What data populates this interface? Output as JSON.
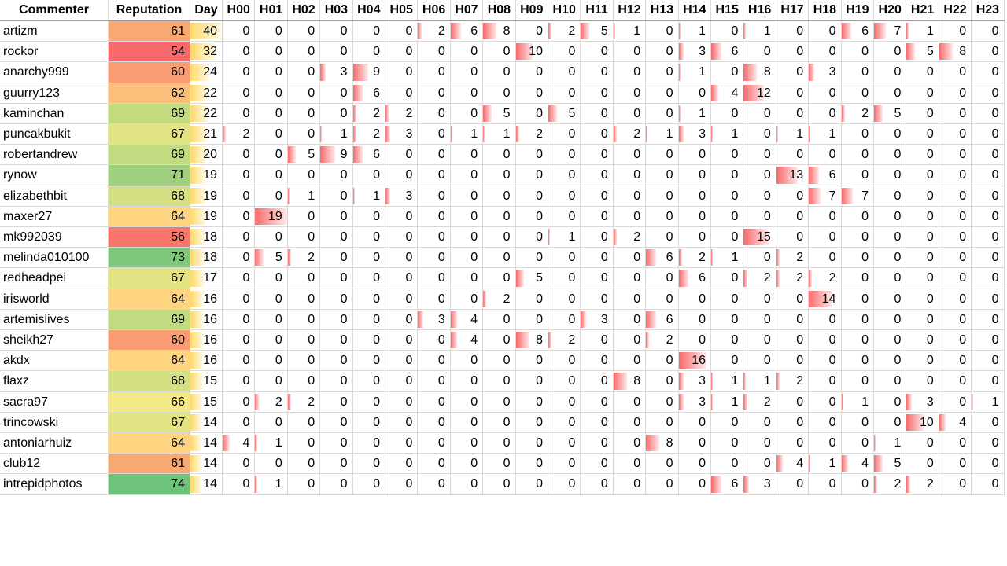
{
  "headers": [
    "Commenter",
    "Reputation",
    "Day",
    "H00",
    "H01",
    "H02",
    "H03",
    "H04",
    "H05",
    "H06",
    "H07",
    "H08",
    "H09",
    "H10",
    "H11",
    "H12",
    "H13",
    "H14",
    "H15",
    "H16",
    "H17",
    "H18",
    "H19",
    "H20",
    "H21",
    "H22",
    "H23"
  ],
  "rows": [
    {
      "name": "artizm",
      "rep": 61,
      "rep_color": "#f8a872",
      "day": 40,
      "hours": [
        0,
        0,
        0,
        0,
        0,
        0,
        2,
        6,
        8,
        0,
        2,
        5,
        1,
        0,
        1,
        0,
        1,
        0,
        0,
        6,
        7,
        1,
        0,
        0
      ]
    },
    {
      "name": "rockor",
      "rep": 54,
      "rep_color": "#f8696b",
      "day": 32,
      "hours": [
        0,
        0,
        0,
        0,
        0,
        0,
        0,
        0,
        0,
        10,
        0,
        0,
        0,
        0,
        3,
        6,
        0,
        0,
        0,
        0,
        0,
        5,
        8,
        0
      ]
    },
    {
      "name": "anarchy999",
      "rep": 60,
      "rep_color": "#f99c74",
      "day": 24,
      "hours": [
        0,
        0,
        0,
        3,
        9,
        0,
        0,
        0,
        0,
        0,
        0,
        0,
        0,
        0,
        1,
        0,
        8,
        0,
        3,
        0,
        0,
        0,
        0,
        0
      ]
    },
    {
      "name": "guurry123",
      "rep": 62,
      "rep_color": "#fbbf7b",
      "day": 22,
      "hours": [
        0,
        0,
        0,
        0,
        6,
        0,
        0,
        0,
        0,
        0,
        0,
        0,
        0,
        0,
        0,
        4,
        12,
        0,
        0,
        0,
        0,
        0,
        0,
        0
      ]
    },
    {
      "name": "kaminchan",
      "rep": 69,
      "rep_color": "#c2da80",
      "day": 22,
      "hours": [
        0,
        0,
        0,
        0,
        2,
        2,
        0,
        0,
        5,
        0,
        5,
        0,
        0,
        0,
        1,
        0,
        0,
        0,
        0,
        2,
        5,
        0,
        0,
        0
      ]
    },
    {
      "name": "puncakbukit",
      "rep": 67,
      "rep_color": "#e2e383",
      "day": 21,
      "hours": [
        2,
        0,
        0,
        1,
        2,
        3,
        0,
        1,
        1,
        2,
        0,
        0,
        2,
        1,
        3,
        1,
        0,
        1,
        1,
        0,
        0,
        0,
        0,
        0
      ]
    },
    {
      "name": "robertandrew",
      "rep": 69,
      "rep_color": "#c2da80",
      "day": 20,
      "hours": [
        0,
        0,
        5,
        9,
        6,
        0,
        0,
        0,
        0,
        0,
        0,
        0,
        0,
        0,
        0,
        0,
        0,
        0,
        0,
        0,
        0,
        0,
        0,
        0
      ]
    },
    {
      "name": "rynow",
      "rep": 71,
      "rep_color": "#9fd07d",
      "day": 19,
      "hours": [
        0,
        0,
        0,
        0,
        0,
        0,
        0,
        0,
        0,
        0,
        0,
        0,
        0,
        0,
        0,
        0,
        0,
        13,
        6,
        0,
        0,
        0,
        0,
        0
      ]
    },
    {
      "name": "elizabethbit",
      "rep": 68,
      "rep_color": "#d3df82",
      "day": 19,
      "hours": [
        0,
        0,
        1,
        0,
        1,
        3,
        0,
        0,
        0,
        0,
        0,
        0,
        0,
        0,
        0,
        0,
        0,
        0,
        7,
        7,
        0,
        0,
        0,
        0
      ]
    },
    {
      "name": "maxer27",
      "rep": 64,
      "rep_color": "#fed480",
      "day": 19,
      "hours": [
        0,
        19,
        0,
        0,
        0,
        0,
        0,
        0,
        0,
        0,
        0,
        0,
        0,
        0,
        0,
        0,
        0,
        0,
        0,
        0,
        0,
        0,
        0,
        0
      ]
    },
    {
      "name": "mk992039",
      "rep": 56,
      "rep_color": "#f9766d",
      "day": 18,
      "hours": [
        0,
        0,
        0,
        0,
        0,
        0,
        0,
        0,
        0,
        0,
        1,
        0,
        2,
        0,
        0,
        0,
        15,
        0,
        0,
        0,
        0,
        0,
        0,
        0
      ]
    },
    {
      "name": "melinda010100",
      "rep": 73,
      "rep_color": "#7fc77b",
      "day": 18,
      "hours": [
        0,
        5,
        2,
        0,
        0,
        0,
        0,
        0,
        0,
        0,
        0,
        0,
        0,
        6,
        2,
        1,
        0,
        2,
        0,
        0,
        0,
        0,
        0,
        0
      ]
    },
    {
      "name": "redheadpei",
      "rep": 67,
      "rep_color": "#e2e383",
      "day": 17,
      "hours": [
        0,
        0,
        0,
        0,
        0,
        0,
        0,
        0,
        0,
        5,
        0,
        0,
        0,
        0,
        6,
        0,
        2,
        2,
        2,
        0,
        0,
        0,
        0,
        0
      ]
    },
    {
      "name": "irisworld",
      "rep": 64,
      "rep_color": "#fed480",
      "day": 16,
      "hours": [
        0,
        0,
        0,
        0,
        0,
        0,
        0,
        0,
        2,
        0,
        0,
        0,
        0,
        0,
        0,
        0,
        0,
        0,
        14,
        0,
        0,
        0,
        0,
        0
      ]
    },
    {
      "name": "artemislives",
      "rep": 69,
      "rep_color": "#c2da80",
      "day": 16,
      "hours": [
        0,
        0,
        0,
        0,
        0,
        0,
        3,
        4,
        0,
        0,
        0,
        3,
        0,
        6,
        0,
        0,
        0,
        0,
        0,
        0,
        0,
        0,
        0,
        0
      ]
    },
    {
      "name": "sheikh27",
      "rep": 60,
      "rep_color": "#f99c74",
      "day": 16,
      "hours": [
        0,
        0,
        0,
        0,
        0,
        0,
        0,
        4,
        0,
        8,
        2,
        0,
        0,
        2,
        0,
        0,
        0,
        0,
        0,
        0,
        0,
        0,
        0,
        0
      ]
    },
    {
      "name": "akdx",
      "rep": 64,
      "rep_color": "#fed480",
      "day": 16,
      "hours": [
        0,
        0,
        0,
        0,
        0,
        0,
        0,
        0,
        0,
        0,
        0,
        0,
        0,
        0,
        16,
        0,
        0,
        0,
        0,
        0,
        0,
        0,
        0,
        0
      ]
    },
    {
      "name": "flaxz",
      "rep": 68,
      "rep_color": "#d3df82",
      "day": 15,
      "hours": [
        0,
        0,
        0,
        0,
        0,
        0,
        0,
        0,
        0,
        0,
        0,
        0,
        8,
        0,
        3,
        1,
        1,
        2,
        0,
        0,
        0,
        0,
        0,
        0
      ]
    },
    {
      "name": "sacra97",
      "rep": 66,
      "rep_color": "#f2e884",
      "day": 15,
      "hours": [
        0,
        2,
        2,
        0,
        0,
        0,
        0,
        0,
        0,
        0,
        0,
        0,
        0,
        0,
        3,
        1,
        2,
        0,
        0,
        1,
        0,
        3,
        0,
        1
      ]
    },
    {
      "name": "trincowski",
      "rep": 67,
      "rep_color": "#e2e383",
      "day": 14,
      "hours": [
        0,
        0,
        0,
        0,
        0,
        0,
        0,
        0,
        0,
        0,
        0,
        0,
        0,
        0,
        0,
        0,
        0,
        0,
        0,
        0,
        0,
        10,
        4,
        0
      ]
    },
    {
      "name": "antoniarhuiz",
      "rep": 64,
      "rep_color": "#fed480",
      "day": 14,
      "hours": [
        4,
        1,
        0,
        0,
        0,
        0,
        0,
        0,
        0,
        0,
        0,
        0,
        0,
        8,
        0,
        0,
        0,
        0,
        0,
        0,
        1,
        0,
        0,
        0
      ]
    },
    {
      "name": "club12",
      "rep": 61,
      "rep_color": "#f8a872",
      "day": 14,
      "hours": [
        0,
        0,
        0,
        0,
        0,
        0,
        0,
        0,
        0,
        0,
        0,
        0,
        0,
        0,
        0,
        0,
        0,
        4,
        1,
        4,
        5,
        0,
        0,
        0
      ]
    },
    {
      "name": "intrepidphotos",
      "rep": 74,
      "rep_color": "#6fc27a",
      "day": 14,
      "hours": [
        0,
        1,
        0,
        0,
        0,
        0,
        0,
        0,
        0,
        0,
        0,
        0,
        0,
        0,
        0,
        6,
        3,
        0,
        0,
        0,
        2,
        2,
        0,
        0
      ]
    }
  ],
  "colors": {
    "hour_bar": "#f8696b",
    "day_bar": "#ffd966",
    "grid": "#d9d9d9"
  }
}
